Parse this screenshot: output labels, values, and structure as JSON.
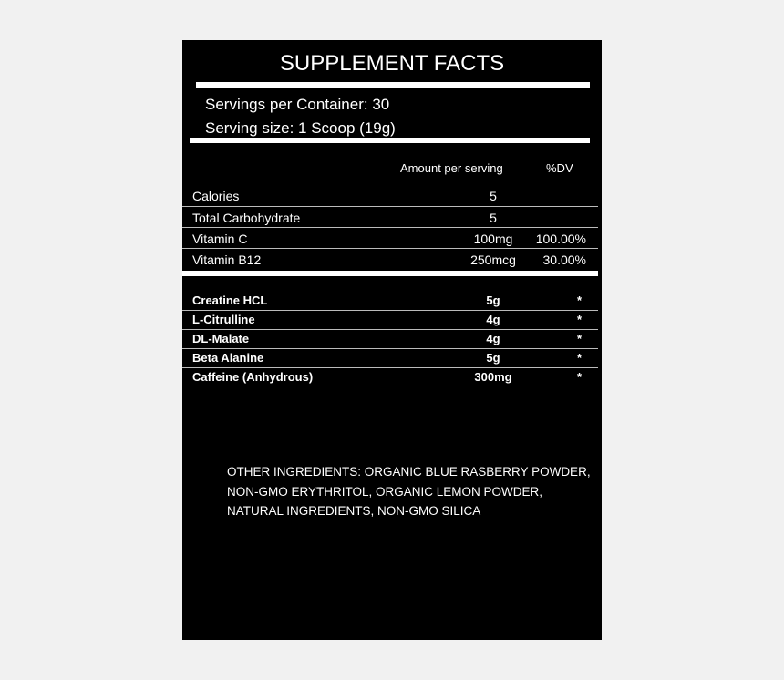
{
  "title": "SUPPLEMENT FACTS",
  "servings_per_container": "Servings per Container: 30",
  "serving_size": "Serving size: 1 Scoop (19g)",
  "header": {
    "amount": "Amount per serving",
    "dv": "%DV"
  },
  "nutrients": [
    {
      "name": "Calories",
      "amount": "5",
      "dv": ""
    },
    {
      "name": "Total Carbohydrate",
      "amount": "5",
      "dv": ""
    },
    {
      "name": "Vitamin C",
      "amount": "100mg",
      "dv": "100.00%"
    },
    {
      "name": "Vitamin B12",
      "amount": "250mcg",
      "dv": "30.00%"
    }
  ],
  "ingredients": [
    {
      "name": "Creatine HCL",
      "amount": "5g",
      "dv": "*"
    },
    {
      "name": "L-Citrulline",
      "amount": "4g",
      "dv": "*"
    },
    {
      "name": "DL-Malate",
      "amount": "4g",
      "dv": "*"
    },
    {
      "name": "Beta Alanine",
      "amount": "5g",
      "dv": "*"
    },
    {
      "name": "Caffeine (Anhydrous)",
      "amount": "300mg",
      "dv": "*"
    }
  ],
  "other_ingredients": [
    "OTHER INGREDIENTS: ORGANIC BLUE RASBERRY POWDER,",
    "NON-GMO ERYTHRITOL, ORGANIC LEMON POWDER,",
    "NATURAL INGREDIENTS, NON-GMO SILICA"
  ],
  "colors": {
    "background": "#f1f1f1",
    "panel": "#000000",
    "text": "#ffffff"
  }
}
